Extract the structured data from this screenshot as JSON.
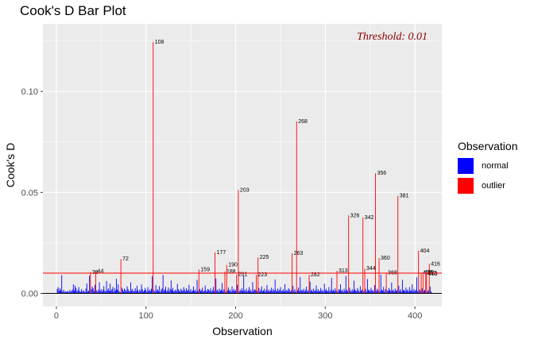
{
  "chart_data": {
    "type": "bar",
    "title": "Cook's D Bar Plot",
    "xlabel": "Observation",
    "ylabel": "Cook's D",
    "xlim": [
      -15,
      430
    ],
    "ylim": [
      -0.0065,
      0.1335
    ],
    "x_ticks": [
      0,
      100,
      200,
      300,
      400
    ],
    "x_tick_labels": [
      "0",
      "100",
      "200",
      "300",
      "400"
    ],
    "y_ticks": [
      0.0,
      0.05,
      0.1
    ],
    "y_tick_labels": [
      "0.00",
      "0.05",
      "0.10"
    ],
    "grid": true,
    "threshold": 0.01,
    "threshold_label": "Threshold: 0.01",
    "legend": {
      "title": "Observation",
      "position": "right",
      "items": [
        {
          "label": "normal",
          "color": "#0000ff"
        },
        {
          "label": "outlier",
          "color": "#ff0000"
        }
      ]
    },
    "outliers": [
      {
        "obs": 38,
        "value": 0.0105,
        "label": "38"
      },
      {
        "obs": 44,
        "value": 0.011,
        "label": "44"
      },
      {
        "obs": 72,
        "value": 0.017,
        "label": "72"
      },
      {
        "obs": 108,
        "value": 0.1245,
        "label": "108"
      },
      {
        "obs": 159,
        "value": 0.0118,
        "label": "159"
      },
      {
        "obs": 177,
        "value": 0.0203,
        "label": "177"
      },
      {
        "obs": 188,
        "value": 0.0108,
        "label": "188"
      },
      {
        "obs": 190,
        "value": 0.0141,
        "label": "190"
      },
      {
        "obs": 201,
        "value": 0.0094,
        "label": "201"
      },
      {
        "obs": 203,
        "value": 0.0512,
        "label": "203"
      },
      {
        "obs": 223,
        "value": 0.0092,
        "label": "223"
      },
      {
        "obs": 225,
        "value": 0.0178,
        "label": "225"
      },
      {
        "obs": 263,
        "value": 0.0199,
        "label": "263"
      },
      {
        "obs": 268,
        "value": 0.0852,
        "label": "268"
      },
      {
        "obs": 282,
        "value": 0.0092,
        "label": "282"
      },
      {
        "obs": 313,
        "value": 0.0112,
        "label": "313"
      },
      {
        "obs": 326,
        "value": 0.0386,
        "label": "326"
      },
      {
        "obs": 342,
        "value": 0.0376,
        "label": "342"
      },
      {
        "obs": 344,
        "value": 0.0123,
        "label": "344"
      },
      {
        "obs": 356,
        "value": 0.0595,
        "label": "356"
      },
      {
        "obs": 360,
        "value": 0.0175,
        "label": "360"
      },
      {
        "obs": 368,
        "value": 0.0103,
        "label": "368"
      },
      {
        "obs": 381,
        "value": 0.0483,
        "label": "381"
      },
      {
        "obs": 404,
        "value": 0.0211,
        "label": "404"
      },
      {
        "obs": 407,
        "value": 0.0103,
        "label": "407"
      },
      {
        "obs": 409,
        "value": 0.0104,
        "label": "409"
      },
      {
        "obs": 412,
        "value": 0.0101,
        "label": "412"
      },
      {
        "obs": 413,
        "value": 0.0097,
        "label": "413"
      },
      {
        "obs": 416,
        "value": 0.0146,
        "label": "416"
      }
    ],
    "normal_values": [
      0.0022,
      0.0031,
      0.0013,
      0.0025,
      0.0016,
      0.0091,
      0.0008,
      0.0018,
      0.0007,
      0.0012,
      0.0006,
      0.0009,
      0.0011,
      0.0005,
      0.0017,
      0.0008,
      0.0013,
      0.0019,
      0.0045,
      0.0014,
      0.0038,
      0.0027,
      0.0009,
      0.0016,
      0.0031,
      0.0011,
      0.0007,
      0.0021,
      0.0008,
      0.0015,
      0.0012,
      0.0006,
      0.0024,
      0.0049,
      0.0009,
      0.0013,
      0.0087,
      0.0019,
      0.0034,
      0.0026,
      0.0011,
      0.0042,
      0.0015,
      0.0008,
      0.0018,
      0.0055,
      0.0012,
      0.0021,
      0.0007,
      0.0017,
      0.0036,
      0.0013,
      0.0009,
      0.0061,
      0.0016,
      0.0024,
      0.0011,
      0.0048,
      0.0014,
      0.0021,
      0.0032,
      0.0008,
      0.0026,
      0.0014,
      0.0072,
      0.0018,
      0.0045,
      0.0012,
      0.0006,
      0.0028,
      0.0019,
      0.0009,
      0.0024,
      0.0017,
      0.0011,
      0.0035,
      0.0021,
      0.0012,
      0.0008,
      0.0054,
      0.0015,
      0.0022,
      0.0009,
      0.0013,
      0.0026,
      0.0011,
      0.0038,
      0.0016,
      0.0007,
      0.0019,
      0.0012,
      0.0044,
      0.0021,
      0.0009,
      0.0014,
      0.0027,
      0.0017,
      0.0008,
      0.0031,
      0.0013,
      0.0019,
      0.0011,
      0.0023,
      0.0085,
      0.0016,
      0.0009,
      0.0041,
      0.0014,
      0.0021,
      0.0011,
      0.0036,
      0.0007,
      0.0018,
      0.0025,
      0.0091,
      0.0012,
      0.0019,
      0.0033,
      0.0009,
      0.0015,
      0.0029,
      0.0011,
      0.0022,
      0.0064,
      0.0016,
      0.0027,
      0.0009,
      0.0013,
      0.0018,
      0.0011,
      0.0047,
      0.0021,
      0.0014,
      0.0008,
      0.0023,
      0.0016,
      0.0012,
      0.0031,
      0.0019,
      0.0009,
      0.0026,
      0.0013,
      0.0017,
      0.0042,
      0.0011,
      0.0021,
      0.0008,
      0.0015,
      0.0034,
      0.0012,
      0.0019,
      0.0009,
      0.0066,
      0.0014,
      0.0022,
      0.0011,
      0.0017,
      0.0028,
      0.0009,
      0.0013,
      0.0039,
      0.0015,
      0.0008,
      0.0021,
      0.0018,
      0.0012,
      0.0025,
      0.0009,
      0.0016,
      0.0032,
      0.0011,
      0.0074,
      0.0014,
      0.0019,
      0.0008,
      0.0023,
      0.0013,
      0.0017,
      0.0051,
      0.0011,
      0.0021,
      0.0009,
      0.0015,
      0.0029,
      0.0012,
      0.0018,
      0.0008,
      0.0035,
      0.0014,
      0.0022,
      0.0011,
      0.0016,
      0.0043,
      0.0009,
      0.0019,
      0.0013,
      0.0026,
      0.0011,
      0.0088,
      0.0017,
      0.0012,
      0.0024,
      0.0009,
      0.0015,
      0.0031,
      0.0011,
      0.0019,
      0.0008,
      0.0056,
      0.0013,
      0.0021,
      0.0016,
      0.0012,
      0.0027,
      0.0009,
      0.0018,
      0.0034,
      0.0011,
      0.0014,
      0.0023,
      0.0008,
      0.0017,
      0.0041,
      0.0012,
      0.0019,
      0.0009,
      0.0015,
      0.0028,
      0.0011,
      0.0022,
      0.0013,
      0.0068,
      0.0016,
      0.0009,
      0.0024,
      0.0012,
      0.0018,
      0.0031,
      0.0011,
      0.0014,
      0.0021,
      0.0009,
      0.0046,
      0.0013,
      0.0017,
      0.0011,
      0.0025,
      0.0019,
      0.0008,
      0.0015,
      0.0037,
      0.0012,
      0.0021,
      0.0009,
      0.0016,
      0.0029,
      0.0011,
      0.0081,
      0.0014,
      0.0018,
      0.0012,
      0.0023,
      0.0009,
      0.0017,
      0.0033,
      0.0011,
      0.0015,
      0.0058,
      0.0013,
      0.0019,
      0.0008,
      0.0024,
      0.0012,
      0.0016,
      0.0039,
      0.0011,
      0.0021,
      0.0009,
      0.0014,
      0.0027,
      0.0012,
      0.0018,
      0.0008,
      0.0049,
      0.0015,
      0.0022,
      0.0011,
      0.0013,
      0.0031,
      0.0009,
      0.0017,
      0.0076,
      0.0012,
      0.0019,
      0.0011,
      0.0025,
      0.0014,
      0.0009,
      0.0021,
      0.0016,
      0.0044,
      0.0012,
      0.0018,
      0.0008,
      0.0023,
      0.0013,
      0.0086,
      0.0017,
      0.0011,
      0.0029,
      0.0015,
      0.0009,
      0.0021,
      0.0012,
      0.0063,
      0.0019,
      0.0014,
      0.0011,
      0.0026,
      0.0016,
      0.0008,
      0.0035,
      0.0013,
      0.0018,
      0.0012,
      0.0022,
      0.0009,
      0.0071,
      0.0015,
      0.0019,
      0.0011,
      0.0028,
      0.0014,
      0.0017,
      0.0009,
      0.0041,
      0.0012,
      0.0023,
      0.0016,
      0.0011,
      0.0092,
      0.0018,
      0.0013,
      0.0032,
      0.0009,
      0.0021,
      0.0015,
      0.0012,
      0.0026,
      0.0017,
      0.0011,
      0.0054,
      0.0014,
      0.0019,
      0.0009,
      0.0024,
      0.0013,
      0.0016,
      0.0038,
      0.0012,
      0.0021,
      0.0008,
      0.0067,
      0.0015,
      0.0018,
      0.0011,
      0.0029,
      0.0014,
      0.0019,
      0.0009,
      0.0031,
      0.0012,
      0.0016,
      0.0045,
      0.0011,
      0.0022,
      0.0013,
      0.0017,
      0.0079,
      0.0009,
      0.0019,
      0.0014,
      0.0025,
      0.0012,
      0.0018,
      0.0011,
      0.0016,
      0.0033,
      0.0009,
      0.0015,
      0.0021,
      0.0057,
      0.0013,
      0.0027,
      0.0011,
      0.0019,
      0.0014,
      0.0082,
      0.0016,
      0.0012,
      0.0024,
      0.0009,
      0.0018,
      0.0036,
      0.0013,
      0.0021,
      0.0011,
      0.0015,
      0.0029,
      0.0012
    ]
  }
}
